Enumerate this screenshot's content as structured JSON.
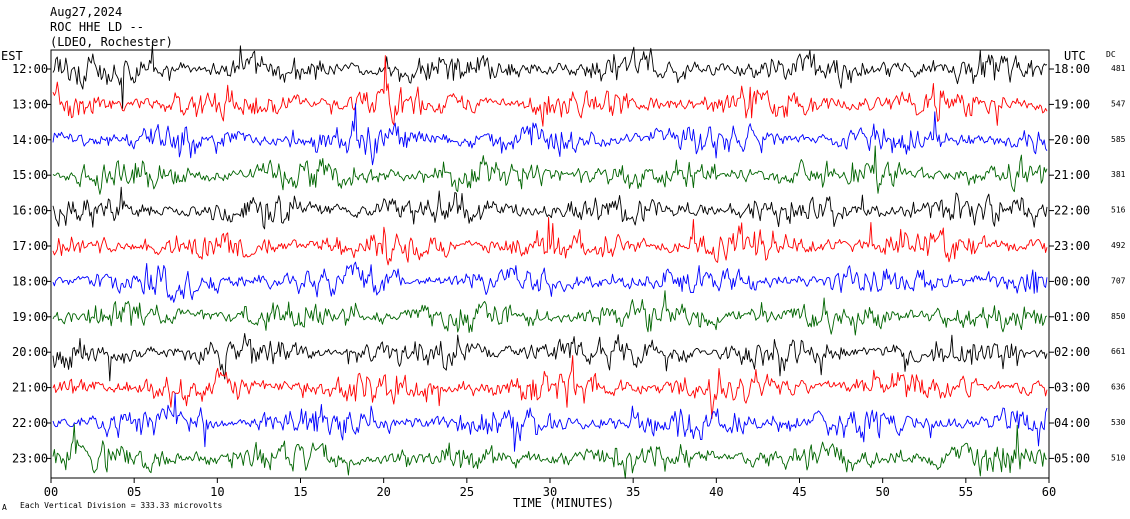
{
  "header": {
    "line1": "Aug27,2024",
    "line2": "ROC HHE LD --",
    "line3": "(LDEO, Rochester)"
  },
  "left_axis_title": "EST",
  "right_axis_title": "UTC",
  "dc_title": "DC",
  "footer": {
    "glyph": "A",
    "scale_text": "Each Vertical Division = 333.33 microvolts"
  },
  "chart_data": {
    "type": "line",
    "title": "Aug27,2024 ROC HHE LD -- (LDEO, Rochester)",
    "xlabel": "TIME (MINUTES)",
    "ylabel": "EST",
    "xlim": [
      0,
      60
    ],
    "x_ticks": [
      "00",
      "05",
      "10",
      "15",
      "20",
      "25",
      "30",
      "35",
      "40",
      "45",
      "50",
      "55",
      "60"
    ],
    "x_tick_values": [
      0,
      5,
      10,
      15,
      20,
      25,
      30,
      35,
      40,
      45,
      50,
      55,
      60
    ],
    "trace_color_cycle": [
      "#000000",
      "#ff0000",
      "#0000ff",
      "#006400"
    ],
    "grid": false,
    "rows": [
      {
        "est": "12:00",
        "utc": "18:00",
        "dc": "481",
        "color": "#000000"
      },
      {
        "est": "13:00",
        "utc": "19:00",
        "dc": "547",
        "color": "#ff0000"
      },
      {
        "est": "14:00",
        "utc": "20:00",
        "dc": "585",
        "color": "#0000ff"
      },
      {
        "est": "15:00",
        "utc": "21:00",
        "dc": "381",
        "color": "#006400"
      },
      {
        "est": "16:00",
        "utc": "22:00",
        "dc": "516",
        "color": "#000000"
      },
      {
        "est": "17:00",
        "utc": "23:00",
        "dc": "492",
        "color": "#ff0000"
      },
      {
        "est": "18:00",
        "utc": "00:00",
        "dc": "707",
        "color": "#0000ff"
      },
      {
        "est": "19:00",
        "utc": "01:00",
        "dc": "850",
        "color": "#006400"
      },
      {
        "est": "20:00",
        "utc": "02:00",
        "dc": "661",
        "color": "#000000"
      },
      {
        "est": "21:00",
        "utc": "03:00",
        "dc": "636",
        "color": "#ff0000"
      },
      {
        "est": "22:00",
        "utc": "04:00",
        "dc": "530",
        "color": "#0000ff"
      },
      {
        "est": "23:00",
        "utc": "05:00",
        "dc": "510",
        "color": "#006400"
      }
    ]
  }
}
